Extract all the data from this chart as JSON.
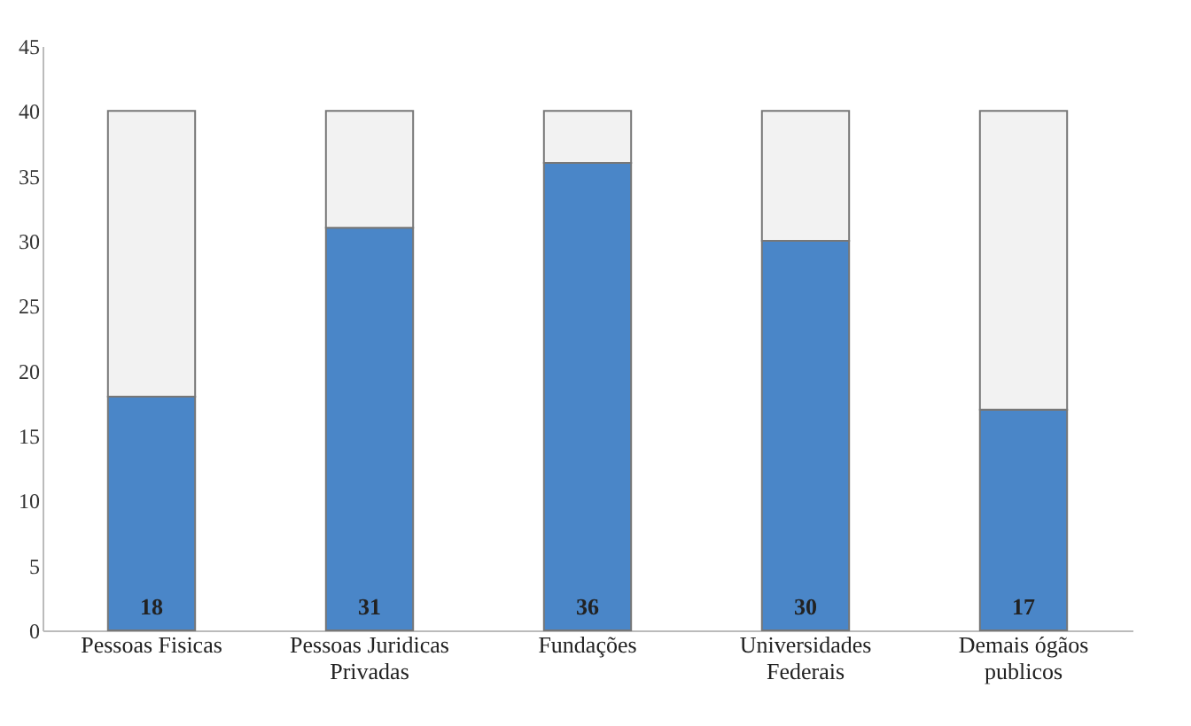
{
  "chart_data": {
    "type": "bar",
    "stacked": true,
    "categories": [
      "Pessoas Fisicas",
      "Pessoas Juridicas Privadas",
      "Fundações",
      "Universidades Federais",
      "Demais ógãos publicos"
    ],
    "series": [
      {
        "color": "#4a86c8",
        "values": [
          18,
          31,
          36,
          30,
          17
        ],
        "value_labels": [
          "18",
          "31",
          "36",
          "30",
          "17"
        ]
      },
      {
        "color": "#f2f2f2",
        "values": [
          22,
          9,
          4,
          10,
          23
        ]
      }
    ],
    "ylim": [
      0,
      45
    ],
    "yticks": [
      0,
      5,
      10,
      15,
      20,
      25,
      30,
      35,
      40,
      45
    ],
    "grid": false,
    "legend": false
  }
}
